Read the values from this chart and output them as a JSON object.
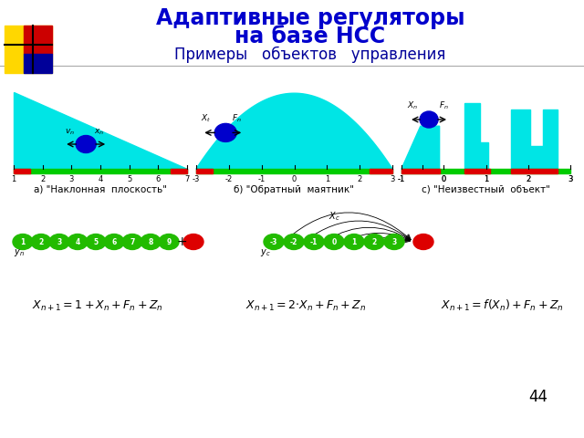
{
  "title_line1": "Адаптивные регуляторы",
  "title_line2": "на базе НСС",
  "subtitle": "Примеры   объектов   управления",
  "title_color": "#0000CC",
  "subtitle_color": "#000099",
  "page_num": "44",
  "bg_color": "#FFFFFF",
  "cyan_color": "#00E5E5",
  "red_color": "#DD0000",
  "green_bar": "#00CC00",
  "green_node": "#22BB00",
  "blue_ball": "#0000CC",
  "label_a": "а) \"Наклонная  плоскость\"",
  "label_b": "б) \"Обратный  маятник\"",
  "label_c": "с) \"Неизвестный  объект\""
}
